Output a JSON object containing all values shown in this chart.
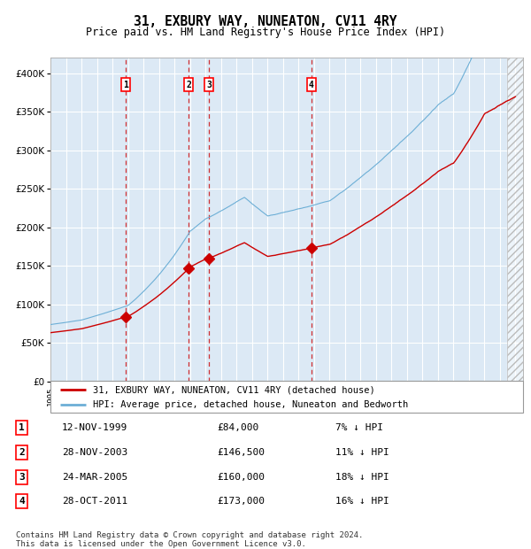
{
  "title": "31, EXBURY WAY, NUNEATON, CV11 4RY",
  "subtitle": "Price paid vs. HM Land Registry's House Price Index (HPI)",
  "background_color": "#ffffff",
  "plot_bg_color": "#dce9f5",
  "grid_color": "#ffffff",
  "hpi_color": "#6dafd6",
  "price_color": "#cc0000",
  "transactions": [
    {
      "id": 1,
      "date": "12-NOV-1999",
      "year": 1999.87,
      "price": 84000,
      "pct": "7%",
      "dir": "↓"
    },
    {
      "id": 2,
      "date": "28-NOV-2003",
      "year": 2003.91,
      "price": 146500,
      "pct": "11%",
      "dir": "↓"
    },
    {
      "id": 3,
      "date": "24-MAR-2005",
      "year": 2005.23,
      "price": 160000,
      "pct": "18%",
      "dir": "↓"
    },
    {
      "id": 4,
      "date": "28-OCT-2011",
      "year": 2011.83,
      "price": 173000,
      "pct": "16%",
      "dir": "↓"
    }
  ],
  "legend_line1": "31, EXBURY WAY, NUNEATON, CV11 4RY (detached house)",
  "legend_line2": "HPI: Average price, detached house, Nuneaton and Bedworth",
  "footer": "Contains HM Land Registry data © Crown copyright and database right 2024.\nThis data is licensed under the Open Government Licence v3.0.",
  "ylim": [
    0,
    420000
  ],
  "xlim_start": 1995.0,
  "xlim_end": 2025.5,
  "hatch_start": 2024.5
}
